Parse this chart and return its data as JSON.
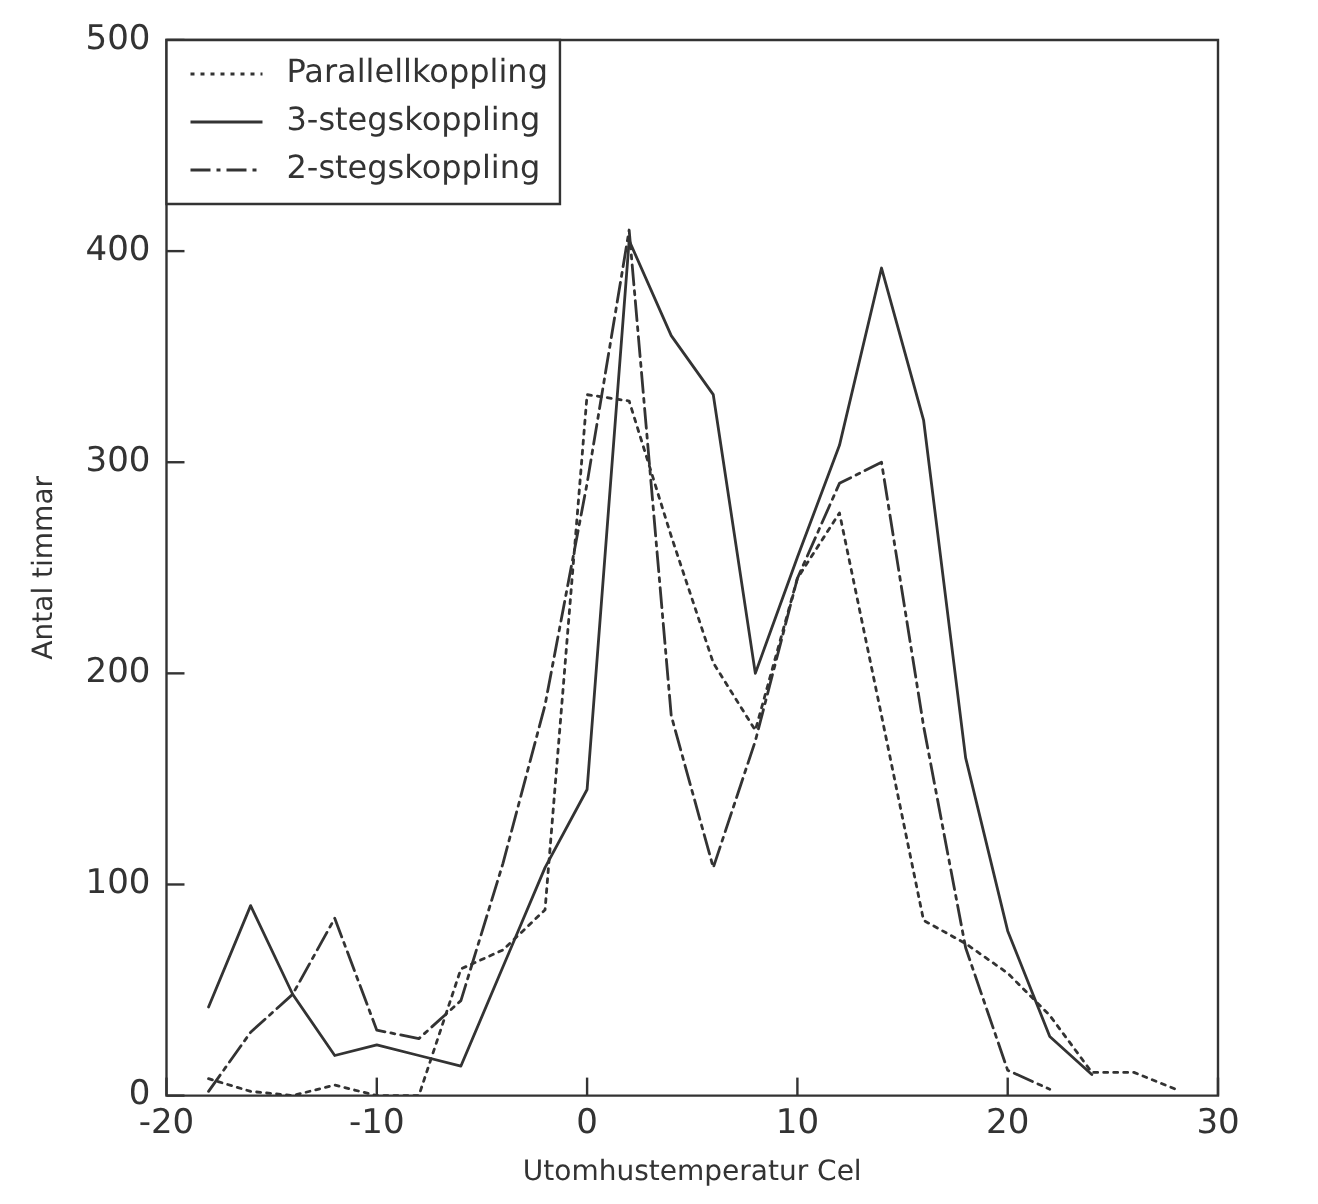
{
  "chart_data": {
    "type": "line",
    "xlabel": "Utomhustemperatur Cel",
    "ylabel": "Antal timmar",
    "x": [
      -18,
      -16,
      -14,
      -12,
      -10,
      -8,
      -6,
      -4,
      -2,
      0,
      2,
      4,
      6,
      8,
      10,
      12,
      14,
      16,
      18,
      20,
      22,
      24,
      26,
      28
    ],
    "series": [
      {
        "name": "Parallellkoppling",
        "color": "#333333",
        "line_style": "dotted",
        "values": [
          8,
          2,
          0,
          5,
          0,
          0,
          60,
          69,
          88,
          332,
          329,
          265,
          205,
          173,
          245,
          276,
          180,
          83,
          72,
          58,
          38,
          11,
          11,
          3
        ]
      },
      {
        "name": "3-stegskoppling",
        "color": "#333333",
        "line_style": "solid",
        "values": [
          42,
          90,
          48,
          19,
          24,
          19,
          14,
          61,
          108,
          145,
          405,
          360,
          332,
          200,
          255,
          308,
          392,
          320,
          160,
          78,
          28,
          10,
          null,
          null
        ]
      },
      {
        "name": "2-stegskoppling",
        "color": "#333333",
        "line_style": "dashed",
        "values": [
          2,
          30,
          48,
          84,
          31,
          27,
          45,
          110,
          185,
          290,
          410,
          180,
          108,
          168,
          245,
          290,
          300,
          175,
          70,
          12,
          3,
          null,
          null,
          null
        ]
      }
    ],
    "xlim": [
      -20,
      30
    ],
    "xticks": [
      -20,
      -10,
      0,
      10,
      20,
      30
    ],
    "ylim": [
      0,
      500
    ],
    "yticks": [
      0,
      100,
      200,
      300,
      400,
      500
    ],
    "grid": false,
    "legend": "top left",
    "marker": "none"
  }
}
